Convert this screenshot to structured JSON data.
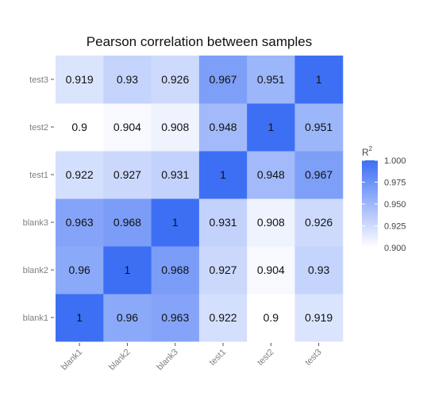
{
  "chart_data": {
    "type": "heatmap",
    "title": "Pearson correlation between samples",
    "x_categories": [
      "blank1",
      "blank2",
      "blank3",
      "test1",
      "test2",
      "test3"
    ],
    "y_categories": [
      "blank1",
      "blank2",
      "blank3",
      "test1",
      "test2",
      "test3"
    ],
    "values": [
      [
        1,
        0.96,
        0.963,
        0.922,
        0.9,
        0.919
      ],
      [
        0.96,
        1,
        0.968,
        0.927,
        0.904,
        0.93
      ],
      [
        0.963,
        0.968,
        1,
        0.931,
        0.908,
        0.926
      ],
      [
        0.922,
        0.927,
        0.931,
        1,
        0.948,
        0.967
      ],
      [
        0.9,
        0.904,
        0.908,
        0.948,
        1,
        0.951
      ],
      [
        0.919,
        0.93,
        0.926,
        0.967,
        0.951,
        1
      ]
    ],
    "value_labels": [
      [
        "1",
        "0.96",
        "0.963",
        "0.922",
        "0.9",
        "0.919"
      ],
      [
        "0.96",
        "1",
        "0.968",
        "0.927",
        "0.904",
        "0.93"
      ],
      [
        "0.963",
        "0.968",
        "1",
        "0.931",
        "0.908",
        "0.926"
      ],
      [
        "0.922",
        "0.927",
        "0.931",
        "1",
        "0.948",
        "0.967"
      ],
      [
        "0.9",
        "0.904",
        "0.908",
        "0.948",
        "1",
        "0.951"
      ],
      [
        "0.919",
        "0.93",
        "0.926",
        "0.967",
        "0.951",
        "1"
      ]
    ],
    "color_range": [
      0.9,
      1.0
    ],
    "color_low": "#ffffff",
    "color_high": "#3d6ff5",
    "legend": {
      "title": "R",
      "title_superscript": "2",
      "ticks": [
        "1.000",
        "0.975",
        "0.950",
        "0.925",
        "0.900"
      ],
      "tick_values": [
        1.0,
        0.975,
        0.95,
        0.925,
        0.9
      ],
      "placement": "right"
    },
    "xlabel": "",
    "ylabel": ""
  }
}
